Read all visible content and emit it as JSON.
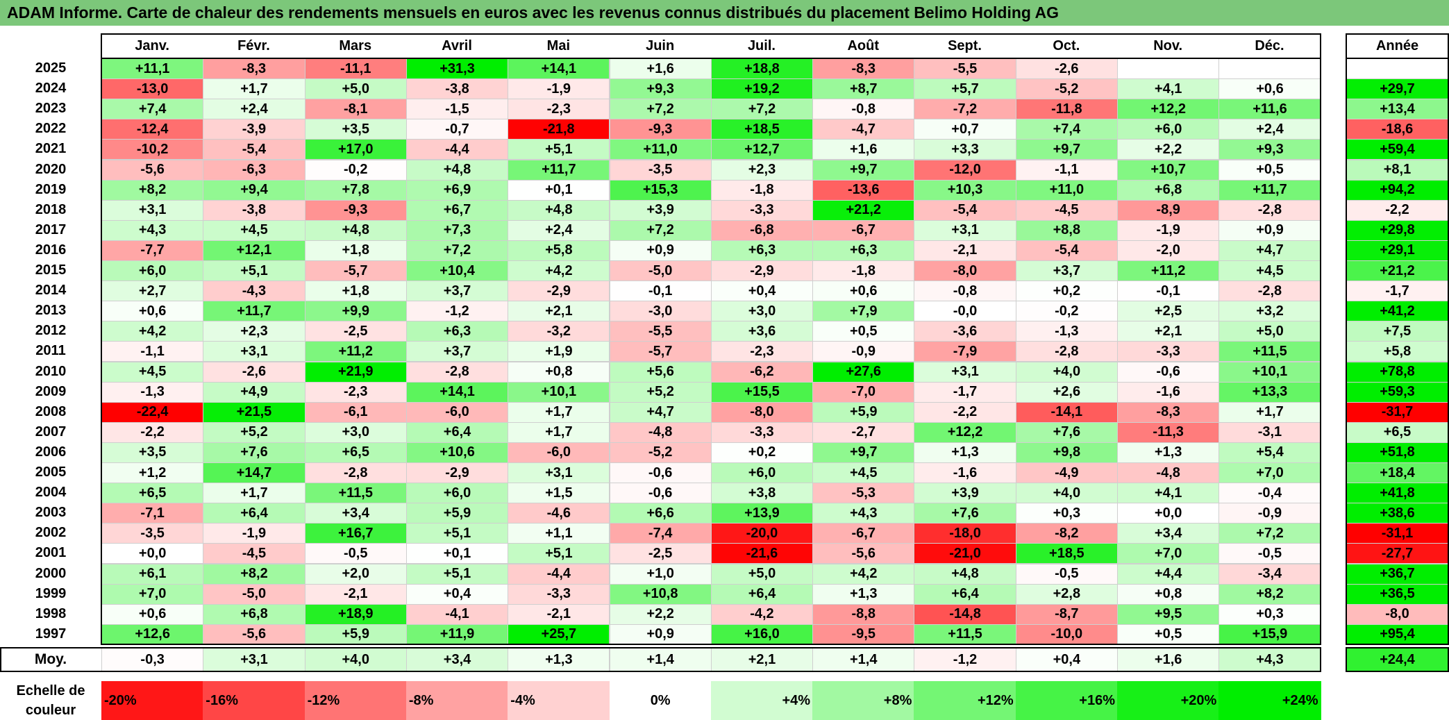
{
  "title": "ADAM Informe. Carte de chaleur des rendements mensuels en euros avec les revenus connus distribués du placement Belimo Holding AG",
  "chart_data": {
    "type": "heatmap",
    "months": [
      "Janv.",
      "Févr.",
      "Mars",
      "Avril",
      "Mai",
      "Juin",
      "Juil.",
      "Août",
      "Sept.",
      "Oct.",
      "Nov.",
      "Déc."
    ],
    "annual_header": "Année",
    "rows": [
      {
        "year": "2025",
        "values": [
          "+11,1",
          "-8,3",
          "-11,1",
          "+31,3",
          "+14,1",
          "+1,6",
          "+18,8",
          "-8,3",
          "-5,5",
          "-2,6",
          "",
          ""
        ],
        "annual": ""
      },
      {
        "year": "2024",
        "values": [
          "-13,0",
          "+1,7",
          "+5,0",
          "-3,8",
          "-1,9",
          "+9,3",
          "+19,2",
          "+8,7",
          "+5,7",
          "-5,2",
          "+4,1",
          "+0,6"
        ],
        "annual": "+29,7"
      },
      {
        "year": "2023",
        "values": [
          "+7,4",
          "+2,4",
          "-8,1",
          "-1,5",
          "-2,3",
          "+7,2",
          "+7,2",
          "-0,8",
          "-7,2",
          "-11,8",
          "+12,2",
          "+11,6"
        ],
        "annual": "+13,4"
      },
      {
        "year": "2022",
        "values": [
          "-12,4",
          "-3,9",
          "+3,5",
          "-0,7",
          "-21,8",
          "-9,3",
          "+18,5",
          "-4,7",
          "+0,7",
          "+7,4",
          "+6,0",
          "+2,4"
        ],
        "annual": "-18,6"
      },
      {
        "year": "2021",
        "values": [
          "-10,2",
          "-5,4",
          "+17,0",
          "-4,4",
          "+5,1",
          "+11,0",
          "+12,7",
          "+1,6",
          "+3,3",
          "+9,7",
          "+2,2",
          "+9,3"
        ],
        "annual": "+59,4"
      },
      {
        "year": "2020",
        "values": [
          "-5,6",
          "-6,3",
          "-0,2",
          "+4,8",
          "+11,7",
          "-3,5",
          "+2,3",
          "+9,7",
          "-12,0",
          "-1,1",
          "+10,7",
          "+0,5"
        ],
        "annual": "+8,1"
      },
      {
        "year": "2019",
        "values": [
          "+8,2",
          "+9,4",
          "+7,8",
          "+6,9",
          "+0,1",
          "+15,3",
          "-1,8",
          "-13,6",
          "+10,3",
          "+11,0",
          "+6,8",
          "+11,7"
        ],
        "annual": "+94,2"
      },
      {
        "year": "2018",
        "values": [
          "+3,1",
          "-3,8",
          "-9,3",
          "+6,7",
          "+4,8",
          "+3,9",
          "-3,3",
          "+21,2",
          "-5,4",
          "-4,5",
          "-8,9",
          "-2,8"
        ],
        "annual": "-2,2"
      },
      {
        "year": "2017",
        "values": [
          "+4,3",
          "+4,5",
          "+4,8",
          "+7,3",
          "+2,4",
          "+7,2",
          "-6,8",
          "-6,7",
          "+3,1",
          "+8,8",
          "-1,9",
          "+0,9"
        ],
        "annual": "+29,8"
      },
      {
        "year": "2016",
        "values": [
          "-7,7",
          "+12,1",
          "+1,8",
          "+7,2",
          "+5,8",
          "+0,9",
          "+6,3",
          "+6,3",
          "-2,1",
          "-5,4",
          "-2,0",
          "+4,7"
        ],
        "annual": "+29,1"
      },
      {
        "year": "2015",
        "values": [
          "+6,0",
          "+5,1",
          "-5,7",
          "+10,4",
          "+4,2",
          "-5,0",
          "-2,9",
          "-1,8",
          "-8,0",
          "+3,7",
          "+11,2",
          "+4,5"
        ],
        "annual": "+21,2"
      },
      {
        "year": "2014",
        "values": [
          "+2,7",
          "-4,3",
          "+1,8",
          "+3,7",
          "-2,9",
          "-0,1",
          "+0,4",
          "+0,6",
          "-0,8",
          "+0,2",
          "-0,1",
          "-2,8"
        ],
        "annual": "-1,7"
      },
      {
        "year": "2013",
        "values": [
          "+0,6",
          "+11,7",
          "+9,9",
          "-1,2",
          "+2,1",
          "-3,0",
          "+3,0",
          "+7,9",
          "-0,0",
          "-0,2",
          "+2,5",
          "+3,2"
        ],
        "annual": "+41,2"
      },
      {
        "year": "2012",
        "values": [
          "+4,2",
          "+2,3",
          "-2,5",
          "+6,3",
          "-3,2",
          "-5,5",
          "+3,6",
          "+0,5",
          "-3,6",
          "-1,3",
          "+2,1",
          "+5,0"
        ],
        "annual": "+7,5"
      },
      {
        "year": "2011",
        "values": [
          "-1,1",
          "+3,1",
          "+11,2",
          "+3,7",
          "+1,9",
          "-5,7",
          "-2,3",
          "-0,9",
          "-7,9",
          "-2,8",
          "-3,3",
          "+11,5"
        ],
        "annual": "+5,8"
      },
      {
        "year": "2010",
        "values": [
          "+4,5",
          "-2,6",
          "+21,9",
          "-2,8",
          "+0,8",
          "+5,6",
          "-6,2",
          "+27,6",
          "+3,1",
          "+4,0",
          "-0,6",
          "+10,1"
        ],
        "annual": "+78,8"
      },
      {
        "year": "2009",
        "values": [
          "-1,3",
          "+4,9",
          "-2,3",
          "+14,1",
          "+10,1",
          "+5,2",
          "+15,5",
          "-7,0",
          "-1,7",
          "+2,6",
          "-1,6",
          "+13,3"
        ],
        "annual": "+59,3"
      },
      {
        "year": "2008",
        "values": [
          "-22,4",
          "+21,5",
          "-6,1",
          "-6,0",
          "+1,7",
          "+4,7",
          "-8,0",
          "+5,9",
          "-2,2",
          "-14,1",
          "-8,3",
          "+1,7"
        ],
        "annual": "-31,7"
      },
      {
        "year": "2007",
        "values": [
          "-2,2",
          "+5,2",
          "+3,0",
          "+6,4",
          "+1,7",
          "-4,8",
          "-3,3",
          "-2,7",
          "+12,2",
          "+7,6",
          "-11,3",
          "-3,1"
        ],
        "annual": "+6,5"
      },
      {
        "year": "2006",
        "values": [
          "+3,5",
          "+7,6",
          "+6,5",
          "+10,6",
          "-6,0",
          "-5,2",
          "+0,2",
          "+9,7",
          "+1,3",
          "+9,8",
          "+1,3",
          "+5,4"
        ],
        "annual": "+51,8"
      },
      {
        "year": "2005",
        "values": [
          "+1,2",
          "+14,7",
          "-2,8",
          "-2,9",
          "+3,1",
          "-0,6",
          "+6,0",
          "+4,5",
          "-1,6",
          "-4,9",
          "-4,8",
          "+7,0"
        ],
        "annual": "+18,4"
      },
      {
        "year": "2004",
        "values": [
          "+6,5",
          "+1,7",
          "+11,5",
          "+6,0",
          "+1,5",
          "-0,6",
          "+3,8",
          "-5,3",
          "+3,9",
          "+4,0",
          "+4,1",
          "-0,4"
        ],
        "annual": "+41,8"
      },
      {
        "year": "2003",
        "values": [
          "-7,1",
          "+6,4",
          "+3,4",
          "+5,9",
          "-4,6",
          "+6,6",
          "+13,9",
          "+4,3",
          "+7,6",
          "+0,3",
          "+0,0",
          "-0,9"
        ],
        "annual": "+38,6"
      },
      {
        "year": "2002",
        "values": [
          "-3,5",
          "-1,9",
          "+16,7",
          "+5,1",
          "+1,1",
          "-7,4",
          "-20,0",
          "-6,7",
          "-18,0",
          "-8,2",
          "+3,4",
          "+7,2"
        ],
        "annual": "-31,1"
      },
      {
        "year": "2001",
        "values": [
          "+0,0",
          "-4,5",
          "-0,5",
          "+0,1",
          "+5,1",
          "-2,5",
          "-21,6",
          "-5,6",
          "-21,0",
          "+18,5",
          "+7,0",
          "-0,5"
        ],
        "annual": "-27,7"
      },
      {
        "year": "2000",
        "values": [
          "+6,1",
          "+8,2",
          "+2,0",
          "+5,1",
          "-4,4",
          "+1,0",
          "+5,0",
          "+4,2",
          "+4,8",
          "-0,5",
          "+4,4",
          "-3,4"
        ],
        "annual": "+36,7"
      },
      {
        "year": "1999",
        "values": [
          "+7,0",
          "-5,0",
          "-2,1",
          "+0,4",
          "-3,3",
          "+10,8",
          "+6,4",
          "+1,3",
          "+6,4",
          "+2,8",
          "+0,8",
          "+8,2"
        ],
        "annual": "+36,5"
      },
      {
        "year": "1998",
        "values": [
          "+0,6",
          "+6,8",
          "+18,9",
          "-4,1",
          "-2,1",
          "+2,2",
          "-4,2",
          "-8,8",
          "-14,8",
          "-8,7",
          "+9,5",
          "+0,3"
        ],
        "annual": "-8,0"
      },
      {
        "year": "1997",
        "values": [
          "+12,6",
          "-5,6",
          "+5,9",
          "+11,9",
          "+25,7",
          "+0,9",
          "+16,0",
          "-9,5",
          "+11,5",
          "-10,0",
          "+0,5",
          "+15,9"
        ],
        "annual": "+95,4"
      }
    ],
    "average": {
      "label": "Moy.",
      "values": [
        "-0,3",
        "+3,1",
        "+4,0",
        "+3,4",
        "+1,3",
        "+1,4",
        "+2,1",
        "+1,4",
        "-1,2",
        "+0,4",
        "+1,6",
        "+4,3"
      ],
      "annual": "+24,4"
    },
    "scale": {
      "label_line1": "Echelle de",
      "label_line2": "couleur",
      "stops": [
        "-20%",
        "-16%",
        "-12%",
        "-8%",
        "-4%",
        "0%",
        "+4%",
        "+8%",
        "+12%",
        "+16%",
        "+20%",
        "+24%"
      ]
    },
    "colors": {
      "negative": "#ff0000",
      "neutral": "#ffffff",
      "positive": "#00ee00",
      "title_bar": "#7cc77a"
    }
  }
}
